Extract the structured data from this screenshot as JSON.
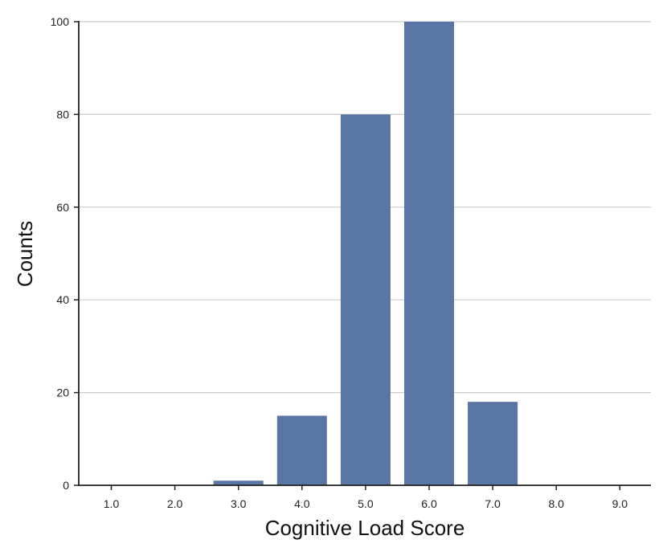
{
  "chart_data": {
    "type": "bar",
    "title": "",
    "xlabel": "Cognitive Load Score",
    "ylabel": "Counts",
    "categories": [
      "1.0",
      "2.0",
      "3.0",
      "4.0",
      "5.0",
      "6.0",
      "7.0",
      "8.0",
      "9.0"
    ],
    "values": [
      0,
      0,
      1,
      15,
      80,
      100,
      18,
      0,
      0
    ],
    "ylim": [
      0,
      100
    ],
    "yticks": [
      "0",
      "20",
      "40",
      "60",
      "80",
      "100"
    ],
    "grid": "horizontal",
    "colors": {
      "bar": "#5875a4",
      "grid": "#cccccc",
      "axis": "#222222"
    }
  }
}
